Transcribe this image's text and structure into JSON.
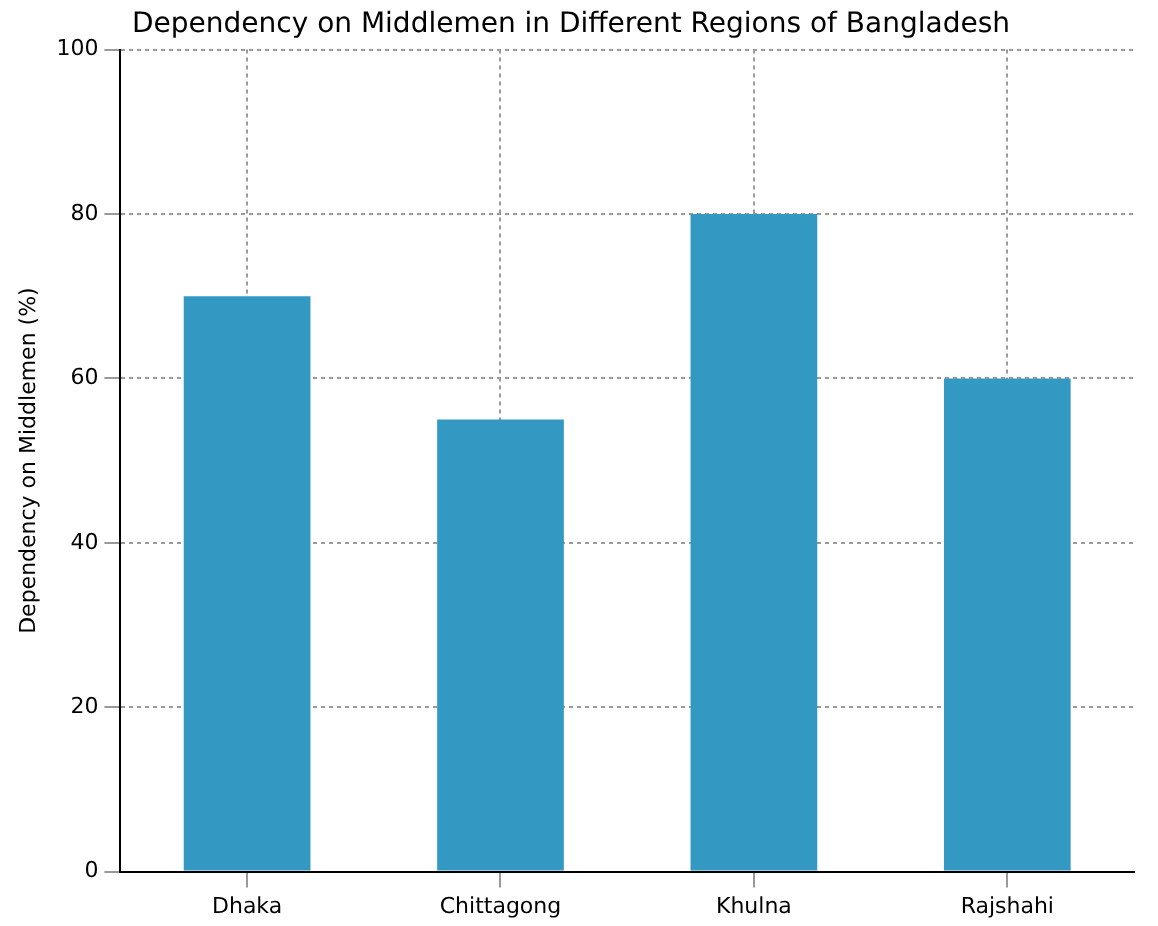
{
  "chart_data": {
    "type": "bar",
    "title": "Dependency on Middlemen in Different Regions of Bangladesh",
    "ylabel": "Dependency on Middlemen (%)",
    "categories": [
      "Dhaka",
      "Chittagong",
      "Khulna",
      "Rajshahi"
    ],
    "values": [
      70,
      55,
      80,
      60
    ],
    "color": "#3399c2",
    "ylim": [
      0,
      100
    ],
    "yticks": [
      0,
      20,
      40,
      60,
      80,
      100
    ],
    "grid": true
  }
}
